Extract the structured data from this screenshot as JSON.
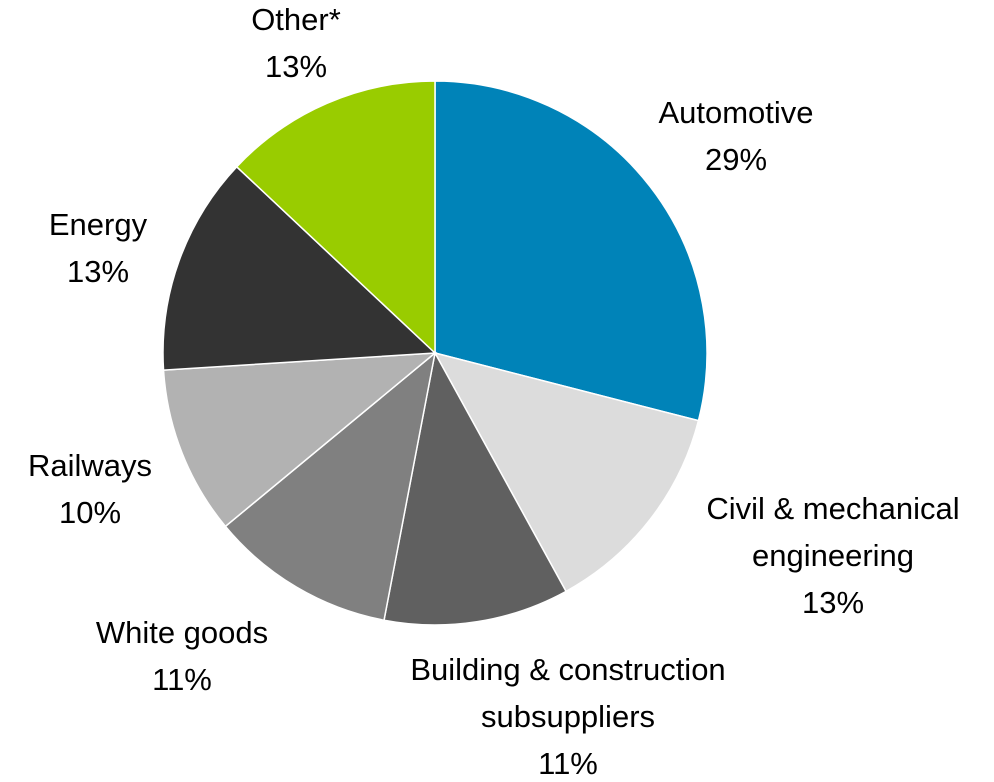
{
  "chart_data": {
    "type": "pie",
    "start_angle_deg": 0,
    "direction": "clockwise",
    "slices": [
      {
        "label_lines": [
          "Automotive"
        ],
        "percent_label": "29%",
        "value": 29,
        "color": "#0083b8"
      },
      {
        "label_lines": [
          "Civil & mechanical",
          "engineering"
        ],
        "percent_label": "13%",
        "value": 13,
        "color": "#dcdcdc"
      },
      {
        "label_lines": [
          "Building & construction",
          "subsuppliers"
        ],
        "percent_label": "11%",
        "value": 11,
        "color": "#606060"
      },
      {
        "label_lines": [
          "White goods"
        ],
        "percent_label": "11%",
        "value": 11,
        "color": "#808080"
      },
      {
        "label_lines": [
          "Railways"
        ],
        "percent_label": "10%",
        "value": 10,
        "color": "#b2b2b2"
      },
      {
        "label_lines": [
          "Energy"
        ],
        "percent_label": "13%",
        "value": 13,
        "color": "#333333"
      },
      {
        "label_lines": [
          "Other*"
        ],
        "percent_label": "13%",
        "value": 13,
        "color": "#99cc00"
      }
    ]
  }
}
